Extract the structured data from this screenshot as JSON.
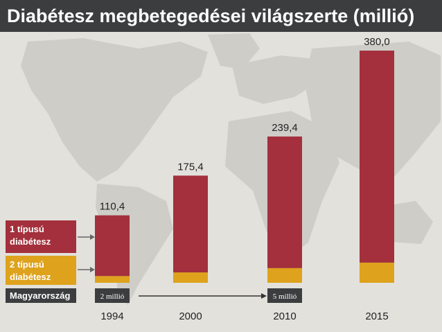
{
  "title": "Diabétesz megbetegedései világszerte (millió)",
  "colors": {
    "background": "#e3e1dc",
    "map": "#cfcdc8",
    "type1": "#a3303c",
    "type2": "#dea21d",
    "title_bar": "#3b3d3f",
    "hungary_box": "#3b3d3f"
  },
  "legend": {
    "type1_label": [
      "1 típusú",
      "diabétesz"
    ],
    "type2_label": [
      "2 típusú",
      "diabétesz"
    ],
    "hungary_label": "Magyarország"
  },
  "hungary_markers": [
    {
      "year": "1994",
      "label": "2 millió"
    },
    {
      "year": "2010",
      "label": "5 millió"
    }
  ],
  "chart_data": {
    "type": "bar",
    "stacked": true,
    "title": "Diabétesz megbetegedései világszerte (millió)",
    "categories": [
      "1994",
      "2000",
      "2010",
      "2015"
    ],
    "totals": [
      "110,4",
      "175,4",
      "239,4",
      "380,0"
    ],
    "series": [
      {
        "name": "2 típusú diabétesz",
        "values": [
          11,
          17,
          24,
          33
        ]
      },
      {
        "name": "1 típusú diabétesz",
        "values": [
          99.4,
          158.4,
          215.4,
          347
        ]
      }
    ],
    "ylim": [
      0,
      380
    ],
    "grid": false,
    "legend_position": "left"
  }
}
